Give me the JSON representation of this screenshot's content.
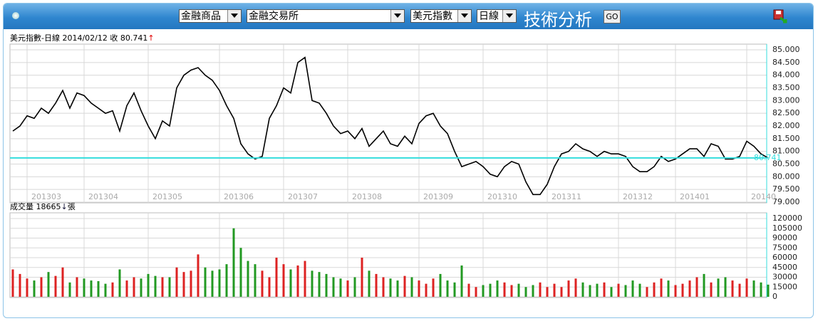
{
  "header": {
    "selects": [
      "金融商品",
      "金融交易所",
      "美元指數",
      "日線"
    ],
    "title": "技術分析",
    "go": "GO"
  },
  "chart_data": [
    {
      "type": "line",
      "title": "美元指數-日線  2014/02/12  收  80.741",
      "arrow": "↑",
      "arrow_color": "#e00000",
      "categories": [
        null,
        null,
        "201303",
        null,
        null,
        null,
        null,
        null,
        null,
        null,
        "201304",
        null,
        null,
        null,
        null,
        null,
        null,
        null,
        null,
        "201305",
        null,
        null,
        null,
        null,
        null,
        null,
        null,
        null,
        null,
        "201306",
        null,
        null,
        null,
        null,
        null,
        null,
        null,
        null,
        "201307",
        null,
        null,
        null,
        null,
        null,
        null,
        null,
        null,
        "201308",
        null,
        null,
        null,
        null,
        null,
        null,
        null,
        null,
        null,
        "201309",
        null,
        null,
        null,
        null,
        null,
        null,
        null,
        null,
        "201310",
        null,
        null,
        null,
        null,
        null,
        null,
        null,
        null,
        "201311",
        null,
        null,
        null,
        null,
        null,
        null,
        null,
        null,
        null,
        "201312",
        null,
        null,
        null,
        null,
        null,
        null,
        null,
        "201401",
        null,
        null,
        null,
        null,
        null,
        null,
        null,
        null,
        null,
        "20140",
        null,
        null,
        null
      ],
      "series": [
        {
          "name": "美元指數",
          "color": "#000000",
          "values": [
            81.8,
            82.0,
            82.4,
            82.3,
            82.7,
            82.5,
            82.9,
            83.4,
            82.7,
            83.3,
            83.2,
            82.9,
            82.7,
            82.5,
            82.6,
            81.8,
            82.8,
            83.3,
            82.6,
            82.0,
            81.5,
            82.2,
            82.0,
            83.5,
            84.0,
            84.2,
            84.3,
            84.0,
            83.8,
            83.4,
            82.8,
            82.3,
            81.3,
            80.9,
            80.7,
            80.8,
            82.3,
            82.8,
            83.5,
            83.3,
            84.5,
            84.7,
            83.0,
            82.9,
            82.5,
            82.0,
            81.7,
            81.8,
            81.5,
            81.9,
            81.2,
            81.5,
            81.8,
            81.3,
            81.2,
            81.6,
            81.3,
            82.1,
            82.4,
            82.5,
            82.0,
            81.7,
            81.0,
            80.4,
            80.5,
            80.6,
            80.4,
            80.1,
            80.0,
            80.4,
            80.6,
            80.5,
            79.8,
            79.3,
            79.3,
            79.7,
            80.4,
            80.9,
            81.0,
            81.3,
            81.1,
            81.0,
            80.8,
            81.0,
            80.9,
            80.9,
            80.8,
            80.4,
            80.2,
            80.2,
            80.4,
            80.8,
            80.6,
            80.7,
            80.9,
            81.1,
            81.1,
            80.8,
            81.3,
            81.2,
            80.7,
            80.7,
            80.8,
            81.4,
            81.2,
            80.9,
            80.741
          ]
        }
      ],
      "last_close": 80.741,
      "close_line_color": "#33dddd",
      "ylim": [
        79,
        85
      ],
      "yticks": [
        {
          "value": 79,
          "label": "79.000"
        },
        {
          "value": 79.5,
          "label": "79.500"
        },
        {
          "value": 80,
          "label": "80.000"
        },
        {
          "value": 80.5,
          "label": "80.500"
        },
        {
          "value": 81,
          "label": "81.000"
        },
        {
          "value": 81.5,
          "label": "81.500"
        },
        {
          "value": 82,
          "label": "82.000"
        },
        {
          "value": 82.5,
          "label": "82.500"
        },
        {
          "value": 83,
          "label": "83.000"
        },
        {
          "value": 83.5,
          "label": "83.500"
        },
        {
          "value": 84,
          "label": "84.000"
        },
        {
          "value": 84.5,
          "label": "84.500"
        },
        {
          "value": 85,
          "label": "85.000"
        }
      ],
      "grid": true
    },
    {
      "type": "bar",
      "title": "成交量  18665",
      "arrow": "↓",
      "unit": "張",
      "up_color": "#dd2222",
      "down_color": "#229922",
      "values": [
        42000,
        35000,
        28000,
        25000,
        30000,
        38000,
        32000,
        45000,
        22000,
        30000,
        28000,
        25000,
        24000,
        20000,
        22000,
        42000,
        25000,
        30000,
        28000,
        35000,
        32000,
        30000,
        30000,
        45000,
        38000,
        40000,
        65000,
        45000,
        40000,
        42000,
        50000,
        105000,
        75000,
        55000,
        50000,
        40000,
        30000,
        60000,
        50000,
        42000,
        48000,
        55000,
        40000,
        38000,
        35000,
        30000,
        28000,
        25000,
        30000,
        60000,
        40000,
        35000,
        30000,
        28000,
        25000,
        32000,
        30000,
        25000,
        20000,
        28000,
        35000,
        25000,
        22000,
        48000,
        20000,
        15000,
        18000,
        20000,
        25000,
        22000,
        18000,
        20000,
        15000,
        18000,
        22000,
        15000,
        20000,
        15000,
        25000,
        28000,
        22000,
        18000,
        20000,
        22000,
        15000,
        20000,
        18000,
        25000,
        20000,
        15000,
        22000,
        28000,
        25000,
        18000,
        20000,
        25000,
        30000,
        35000,
        22000,
        28000,
        30000,
        25000,
        20000,
        28000,
        25000,
        22000,
        18665
      ],
      "ylim": [
        0,
        120000
      ],
      "yticks": [
        0,
        15000,
        30000,
        45000,
        60000,
        75000,
        90000,
        105000,
        120000
      ],
      "grid": true
    }
  ]
}
